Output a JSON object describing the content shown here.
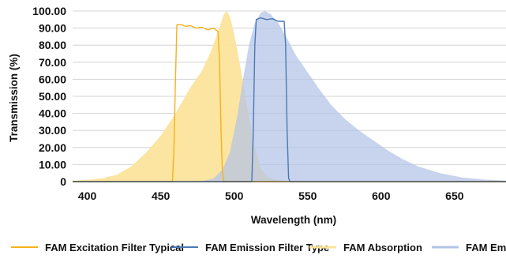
{
  "chart_data": {
    "type": "area",
    "title": "",
    "xlabel": "Wavelength (nm)",
    "ylabel": "Transmission (%)",
    "xlim": [
      390,
      685
    ],
    "ylim": [
      0,
      100
    ],
    "x_ticks": [
      400,
      450,
      500,
      550,
      600,
      650
    ],
    "y_ticks": [
      "0",
      "10.00",
      "20.00",
      "30.00",
      "40.00",
      "50.00",
      "60.00",
      "70.00",
      "80.00",
      "90.00",
      "100.00"
    ],
    "grid": "horizontal",
    "legend_position": "bottom",
    "series": [
      {
        "name": "FAM Absorption",
        "kind": "area",
        "color": "#fce49c",
        "points": [
          [
            390,
            0.5
          ],
          [
            400,
            1
          ],
          [
            410,
            2
          ],
          [
            420,
            4
          ],
          [
            430,
            9
          ],
          [
            440,
            17
          ],
          [
            450,
            27
          ],
          [
            460,
            40
          ],
          [
            470,
            55
          ],
          [
            478,
            65
          ],
          [
            484,
            76
          ],
          [
            489,
            88
          ],
          [
            493,
            98
          ],
          [
            495,
            100
          ],
          [
            497,
            97
          ],
          [
            499,
            90
          ],
          [
            502,
            78
          ],
          [
            506,
            58
          ],
          [
            510,
            38
          ],
          [
            514,
            20
          ],
          [
            518,
            8
          ],
          [
            522,
            3
          ],
          [
            528,
            1
          ],
          [
            535,
            0.4
          ],
          [
            545,
            0
          ]
        ]
      },
      {
        "name": "FAM Emission",
        "kind": "area",
        "color": "#b3c4e6",
        "points": [
          [
            472,
            0
          ],
          [
            480,
            0.6
          ],
          [
            486,
            2
          ],
          [
            492,
            7
          ],
          [
            497,
            17
          ],
          [
            502,
            38
          ],
          [
            506,
            60
          ],
          [
            510,
            80
          ],
          [
            514,
            93
          ],
          [
            518,
            99
          ],
          [
            521,
            100
          ],
          [
            525,
            98
          ],
          [
            530,
            93
          ],
          [
            536,
            84
          ],
          [
            542,
            74
          ],
          [
            550,
            64
          ],
          [
            558,
            54
          ],
          [
            566,
            45
          ],
          [
            575,
            37
          ],
          [
            585,
            30
          ],
          [
            595,
            24
          ],
          [
            605,
            18
          ],
          [
            615,
            13
          ],
          [
            625,
            9
          ],
          [
            640,
            5
          ],
          [
            655,
            2.5
          ],
          [
            670,
            1.2
          ],
          [
            685,
            0.6
          ]
        ]
      },
      {
        "name": "FAM Excitation Filter Typical",
        "kind": "line",
        "color": "#f5b21b",
        "points": [
          [
            390,
            0
          ],
          [
            458,
            0
          ],
          [
            459,
            20
          ],
          [
            460,
            60
          ],
          [
            461,
            92
          ],
          [
            464,
            92
          ],
          [
            467,
            91
          ],
          [
            470,
            91.5
          ],
          [
            474,
            90
          ],
          [
            478,
            90.5
          ],
          [
            482,
            89
          ],
          [
            486,
            90
          ],
          [
            489,
            88
          ],
          [
            490,
            70
          ],
          [
            491,
            30
          ],
          [
            492,
            5
          ],
          [
            493,
            0
          ],
          [
            685,
            0
          ]
        ]
      },
      {
        "name": "FAM Emission Filter Type",
        "kind": "line",
        "color": "#4a78b5",
        "points": [
          [
            390,
            0
          ],
          [
            512,
            0
          ],
          [
            513,
            30
          ],
          [
            514,
            80
          ],
          [
            515,
            95
          ],
          [
            518,
            96
          ],
          [
            522,
            95
          ],
          [
            526,
            95.5
          ],
          [
            530,
            94
          ],
          [
            534,
            94
          ],
          [
            535,
            80
          ],
          [
            536,
            30
          ],
          [
            537,
            2
          ],
          [
            538,
            0
          ],
          [
            685,
            0
          ]
        ]
      }
    ]
  }
}
